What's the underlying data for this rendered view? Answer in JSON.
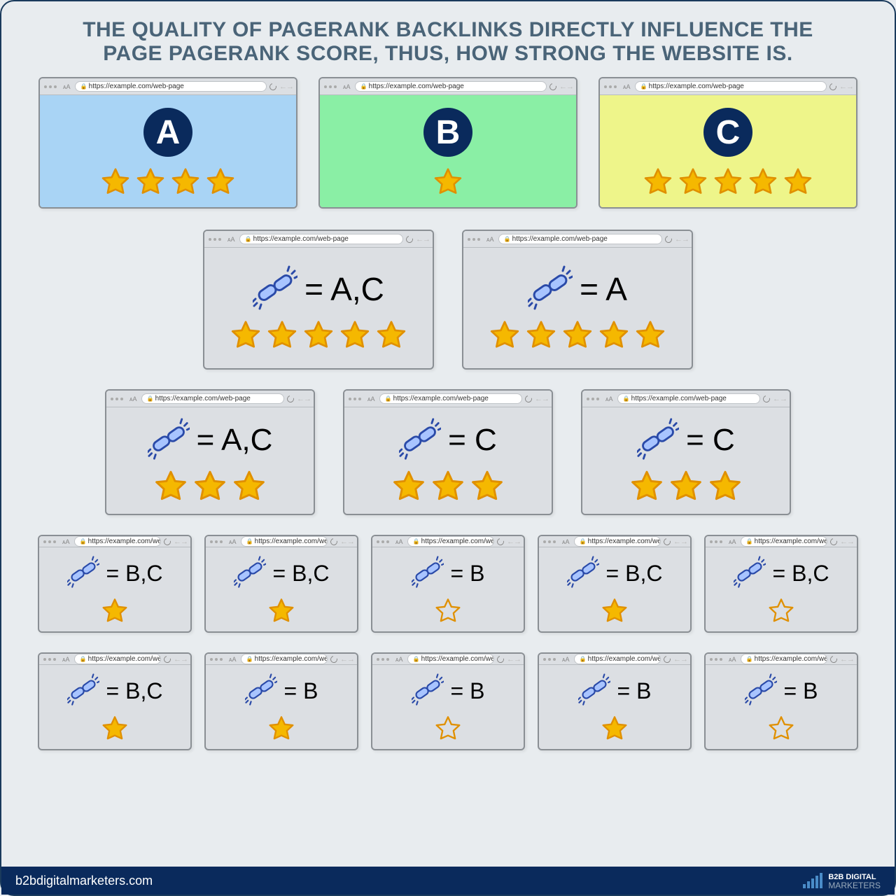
{
  "title": "THE QUALITY OF PAGERANK BACKLINKS DIRECTLY INFLUENCE THE PAGE PAGERANK SCORE, THUS, HOW STRONG THE WEBSITE IS.",
  "url_text": "https://example.com/web-page",
  "colors": {
    "page_bg": "#e8ecef",
    "title_color": "#4a6478",
    "win_border": "#8a8f94",
    "win_bg": "#dcdfe3",
    "badge_bg": "#0a2a5c",
    "star_fill": "#f5b800",
    "star_stroke": "#e09000",
    "star_outline_stroke": "#e09000",
    "chain_fill": "#a8c4ff",
    "chain_stroke": "#2a4aa8",
    "footer_bg": "#0a2a5c"
  },
  "top_sites": [
    {
      "label": "A",
      "bg": "#a9d4f5",
      "stars": 4
    },
    {
      "label": "B",
      "bg": "#8aefa5",
      "stars": 1
    },
    {
      "label": "C",
      "bg": "#eef58a",
      "stars": 5
    }
  ],
  "rows": [
    {
      "win_w": 330,
      "win_h": 200,
      "star_size": 46,
      "chain_size": 64,
      "eq_size": 46,
      "items": [
        {
          "target": "A,C",
          "stars": 5,
          "star_style": "fill"
        },
        {
          "target": "A",
          "stars": 5,
          "star_style": "fill"
        }
      ]
    },
    {
      "win_w": 300,
      "win_h": 180,
      "star_size": 50,
      "chain_size": 60,
      "eq_size": 44,
      "items": [
        {
          "target": "A,C",
          "stars": 3,
          "star_style": "fill"
        },
        {
          "target": "C",
          "stars": 3,
          "star_style": "fill"
        },
        {
          "target": "C",
          "stars": 3,
          "star_style": "fill"
        }
      ]
    },
    {
      "win_w": 220,
      "win_h": 140,
      "star_size": 40,
      "chain_size": 46,
      "eq_size": 32,
      "items": [
        {
          "target": "B,C",
          "stars": 1,
          "star_style": "fill"
        },
        {
          "target": "B,C",
          "stars": 1,
          "star_style": "fill"
        },
        {
          "target": "B",
          "stars": 1,
          "star_style": "outline"
        },
        {
          "target": "B,C",
          "stars": 1,
          "star_style": "fill"
        },
        {
          "target": "B,C",
          "stars": 1,
          "star_style": "outline"
        }
      ]
    },
    {
      "win_w": 220,
      "win_h": 140,
      "star_size": 40,
      "chain_size": 46,
      "eq_size": 32,
      "items": [
        {
          "target": "B,C",
          "stars": 1,
          "star_style": "fill"
        },
        {
          "target": "B",
          "stars": 1,
          "star_style": "fill"
        },
        {
          "target": "B",
          "stars": 1,
          "star_style": "outline"
        },
        {
          "target": "B",
          "stars": 1,
          "star_style": "fill"
        },
        {
          "target": "B",
          "stars": 1,
          "star_style": "outline"
        }
      ]
    }
  ],
  "footer": {
    "url": "b2bdigitalmarketers.com",
    "brand_line1": "B2B DIGITAL",
    "brand_line2": "MARKETERS"
  }
}
